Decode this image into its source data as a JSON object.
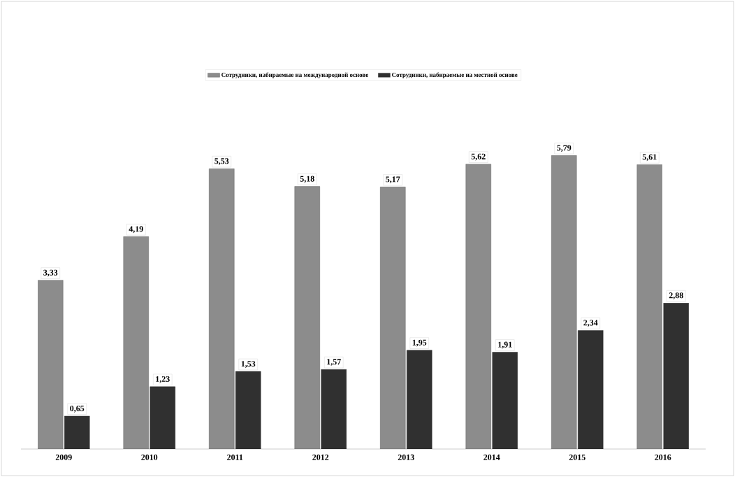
{
  "chart_data": {
    "type": "bar",
    "categories": [
      "2009",
      "2010",
      "2011",
      "2012",
      "2013",
      "2014",
      "2015",
      "2016"
    ],
    "series": [
      {
        "name": "Сотрудники, набираемые на международной основе",
        "color": "#8c8c8c",
        "values": [
          3.33,
          4.19,
          5.53,
          5.18,
          5.17,
          5.62,
          5.79,
          5.61
        ],
        "value_labels": [
          "3,33",
          "4,19",
          "5,53",
          "5,18",
          "5,17",
          "5,62",
          "5,79",
          "5,61"
        ]
      },
      {
        "name": "Сотрудники, набираемые на местной основе",
        "color": "#303030",
        "values": [
          0.65,
          1.23,
          1.53,
          1.57,
          1.95,
          1.91,
          2.34,
          2.88
        ],
        "value_labels": [
          "0,65",
          "1,23",
          "1,53",
          "1,57",
          "1,95",
          "1,91",
          "2,34",
          "2,88"
        ]
      }
    ],
    "legend": "top",
    "grid": false
  }
}
